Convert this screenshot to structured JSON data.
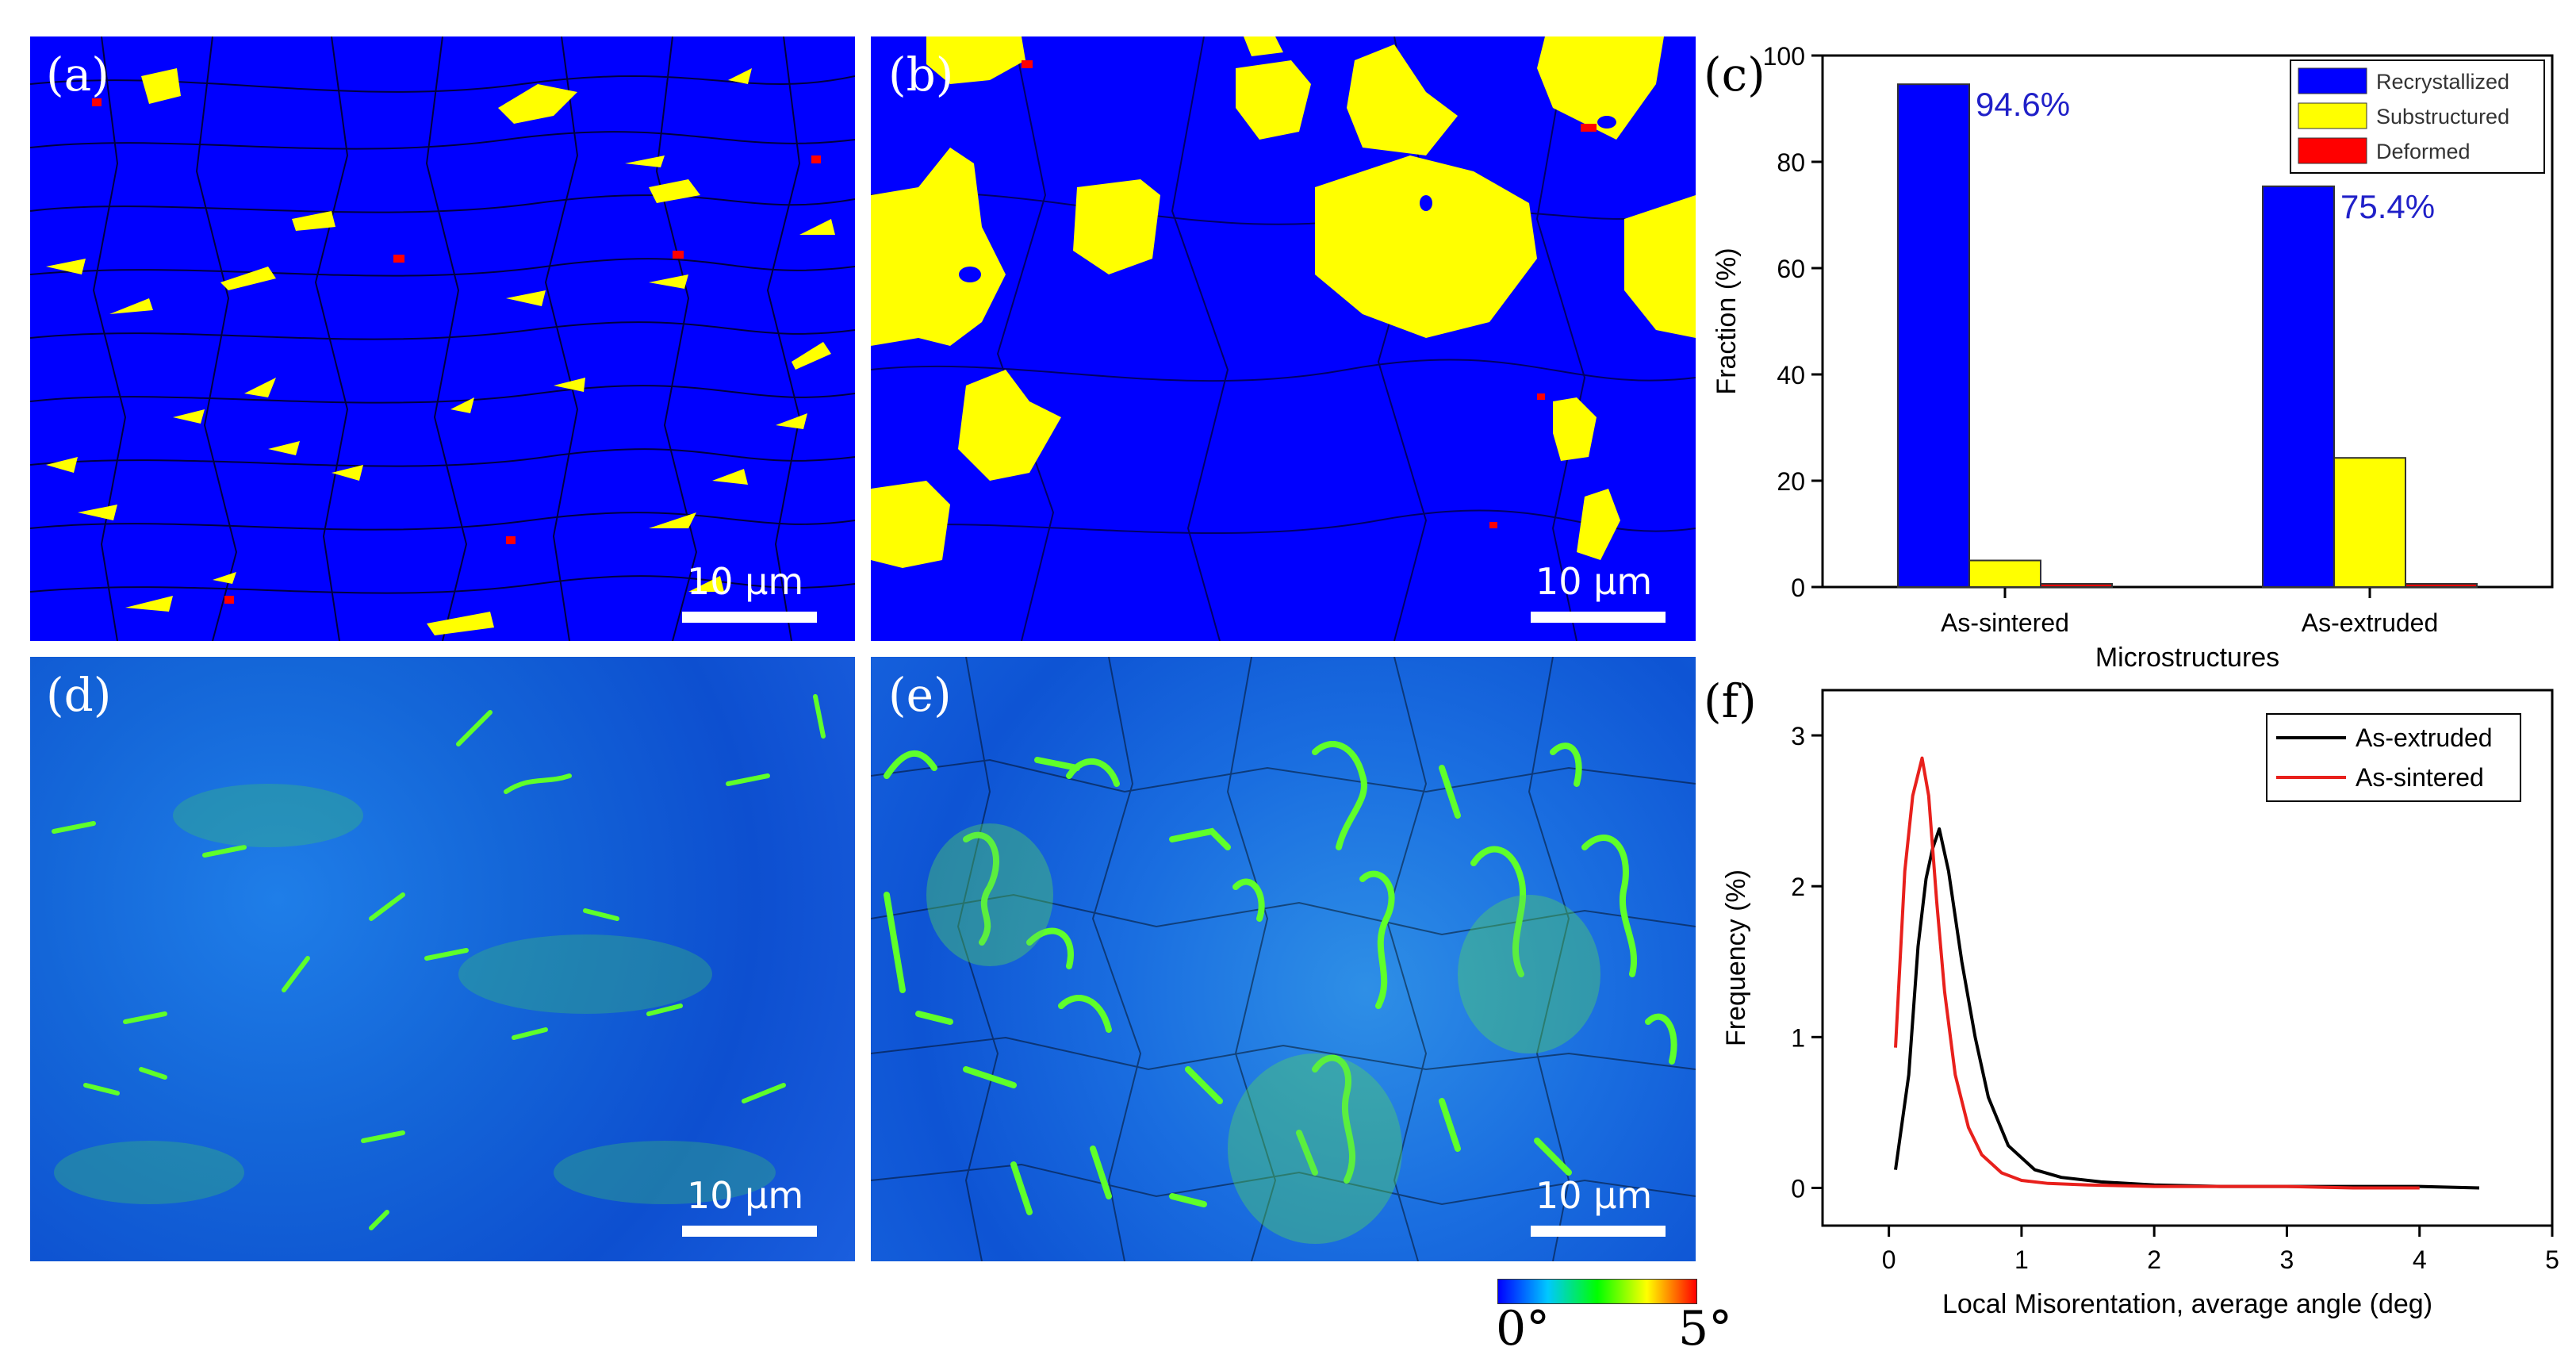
{
  "panels": {
    "a": {
      "letter": "(a)",
      "scale": "10 µm"
    },
    "b": {
      "letter": "(b)",
      "scale": "10 µm"
    },
    "c": {
      "letter": "(c)"
    },
    "d": {
      "letter": "(d)",
      "scale": "10 µm"
    },
    "e": {
      "letter": "(e)",
      "scale": "10 µm"
    },
    "f": {
      "letter": "(f)"
    }
  },
  "colorbar": {
    "min_label": "0°",
    "max_label": "5°",
    "stops": [
      "#0000ff",
      "#00c8ff",
      "#00ff00",
      "#ffff00",
      "#ff0000"
    ]
  },
  "colors": {
    "recrystallized": "#0000ff",
    "substructured": "#ffff00",
    "deformed": "#ff0000",
    "black": "#000000",
    "red": "#e8201c"
  },
  "chart_data": [
    {
      "type": "bar",
      "panel": "c",
      "categories": [
        "As-sintered",
        "As-extruded"
      ],
      "series": [
        {
          "name": "Recrystallized",
          "values": [
            94.6,
            75.4
          ],
          "color": "#0000ff"
        },
        {
          "name": "Substructured",
          "values": [
            5.0,
            24.3
          ],
          "color": "#ffff00"
        },
        {
          "name": "Deformed",
          "values": [
            0.6,
            0.6
          ],
          "color": "#ff0000"
        }
      ],
      "annotations": [
        "94.6%",
        "75.4%"
      ],
      "xlabel": "Microstructures",
      "ylabel": "Fraction (%)",
      "ylim": [
        0,
        100
      ],
      "yticks": [
        0,
        20,
        40,
        60,
        80,
        100
      ],
      "legend_position": "top-right"
    },
    {
      "type": "line",
      "panel": "f",
      "series": [
        {
          "name": "As-extruded",
          "color": "#000000",
          "x": [
            0.05,
            0.15,
            0.22,
            0.28,
            0.33,
            0.38,
            0.45,
            0.55,
            0.65,
            0.75,
            0.9,
            1.1,
            1.3,
            1.6,
            2.0,
            2.5,
            3.0,
            3.5,
            4.0,
            4.45
          ],
          "y": [
            0.12,
            0.75,
            1.6,
            2.05,
            2.25,
            2.38,
            2.1,
            1.5,
            1.0,
            0.6,
            0.28,
            0.12,
            0.07,
            0.04,
            0.02,
            0.01,
            0.01,
            0.01,
            0.01,
            0.0
          ]
        },
        {
          "name": "As-sintered",
          "color": "#e8201c",
          "x": [
            0.05,
            0.12,
            0.18,
            0.25,
            0.3,
            0.36,
            0.42,
            0.5,
            0.6,
            0.7,
            0.85,
            1.0,
            1.2,
            1.5,
            2.0,
            2.5,
            3.0,
            3.5,
            4.0
          ],
          "y": [
            0.93,
            2.1,
            2.6,
            2.85,
            2.6,
            1.9,
            1.3,
            0.75,
            0.4,
            0.22,
            0.1,
            0.05,
            0.03,
            0.02,
            0.01,
            0.01,
            0.01,
            0.0,
            0.0
          ]
        }
      ],
      "xlabel": "Local Misorentation, average angle  (deg)",
      "ylabel": "Frequency (%)",
      "xlim": [
        -0.5,
        5
      ],
      "ylim": [
        -0.25,
        3.3
      ],
      "xticks": [
        0,
        1,
        2,
        3,
        4,
        5
      ],
      "yticks": [
        0,
        1,
        2,
        3
      ],
      "legend_position": "top-right"
    }
  ]
}
